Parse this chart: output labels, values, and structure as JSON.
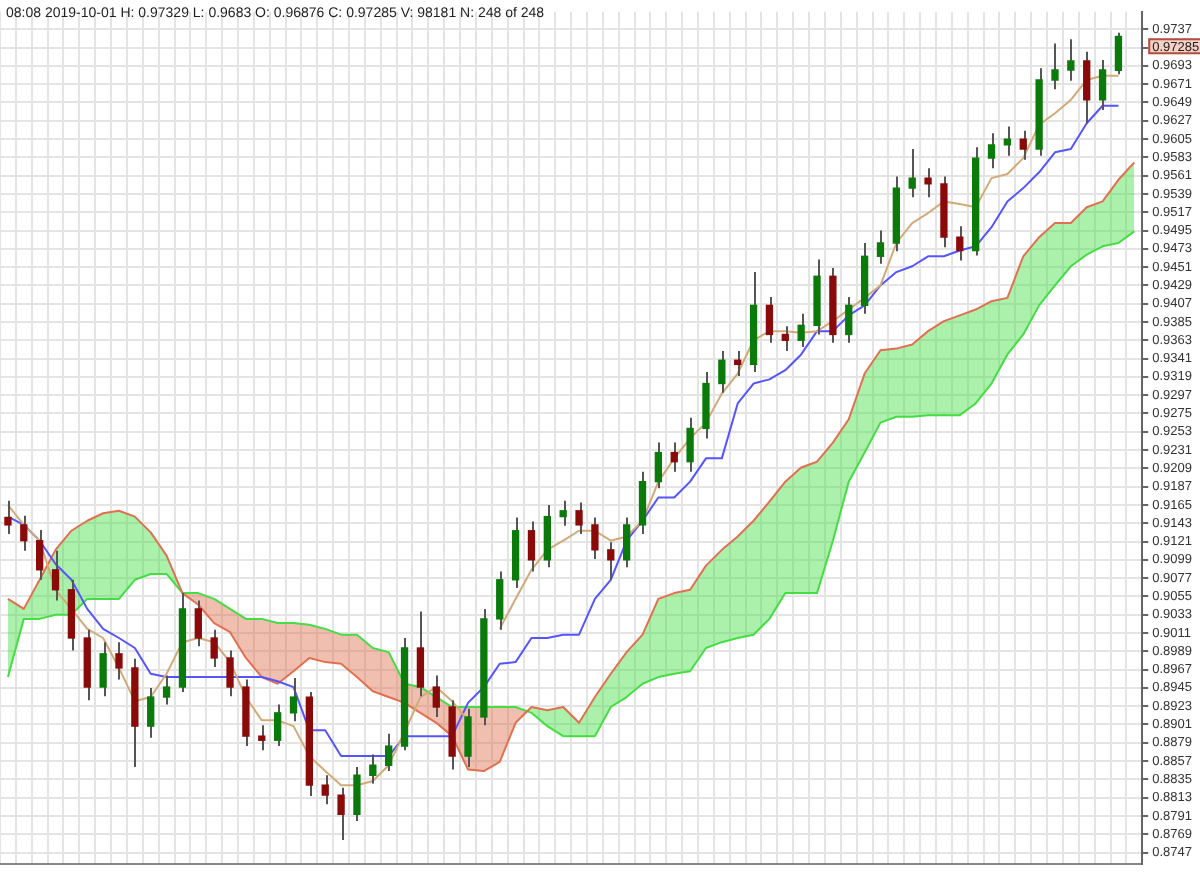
{
  "chart_data": {
    "type": "candlestick",
    "title": "08:08 2019-10-01 H: 0.97329 L: 0.9683 O: 0.96876 C: 0.97285 V: 98181 N: 248 of 248",
    "categories": [
      null,
      null,
      null,
      null,
      null,
      null,
      null,
      null,
      null,
      null,
      null,
      null,
      null,
      null,
      null,
      null,
      null,
      null,
      null,
      null,
      null,
      null,
      null,
      null,
      null,
      null,
      null,
      null,
      null,
      null,
      null,
      null,
      null,
      null,
      null,
      null,
      null,
      null,
      null,
      null,
      null,
      null,
      null,
      null,
      null,
      null,
      null,
      null,
      null,
      null,
      null,
      null,
      null,
      null,
      null,
      null,
      null,
      null,
      null,
      null,
      null,
      null,
      null,
      null,
      null,
      null,
      null,
      null,
      null,
      null,
      null,
      null
    ],
    "ohlc": [
      [
        0.915,
        0.917,
        0.913,
        0.9141
      ],
      [
        0.9141,
        0.9152,
        0.911,
        0.9122
      ],
      [
        0.9122,
        0.9135,
        0.9075,
        0.9087
      ],
      [
        0.9087,
        0.911,
        0.905,
        0.9063
      ],
      [
        0.9063,
        0.9075,
        0.899,
        0.9005
      ],
      [
        0.9005,
        0.9015,
        0.893,
        0.8946
      ],
      [
        0.8946,
        0.9,
        0.8935,
        0.8986
      ],
      [
        0.8986,
        0.9,
        0.8955,
        0.8969
      ],
      [
        0.8969,
        0.898,
        0.885,
        0.8899
      ],
      [
        0.8899,
        0.8945,
        0.8885,
        0.8934
      ],
      [
        0.8934,
        0.896,
        0.8925,
        0.8946
      ],
      [
        0.8946,
        0.9059,
        0.894,
        0.904
      ],
      [
        0.904,
        0.905,
        0.8995,
        0.9005
      ],
      [
        0.9005,
        0.9015,
        0.897,
        0.8981
      ],
      [
        0.8981,
        0.899,
        0.8935,
        0.8946
      ],
      [
        0.8946,
        0.8955,
        0.8875,
        0.8887
      ],
      [
        0.8887,
        0.89,
        0.887,
        0.8882
      ],
      [
        0.8882,
        0.8925,
        0.8875,
        0.8915
      ],
      [
        0.8915,
        0.8957,
        0.8905,
        0.8934
      ],
      [
        0.8934,
        0.894,
        0.8815,
        0.8828
      ],
      [
        0.8828,
        0.884,
        0.8805,
        0.8816
      ],
      [
        0.8816,
        0.8825,
        0.8762,
        0.8793
      ],
      [
        0.8793,
        0.885,
        0.8785,
        0.884
      ],
      [
        0.884,
        0.8865,
        0.883,
        0.8852
      ],
      [
        0.8852,
        0.889,
        0.8845,
        0.8875
      ],
      [
        0.8875,
        0.9005,
        0.887,
        0.8993
      ],
      [
        0.8993,
        0.9037,
        0.8935,
        0.8946
      ],
      [
        0.8946,
        0.896,
        0.891,
        0.8922
      ],
      [
        0.8922,
        0.893,
        0.8847,
        0.8863
      ],
      [
        0.8863,
        0.892,
        0.885,
        0.891
      ],
      [
        0.891,
        0.904,
        0.89,
        0.9028
      ],
      [
        0.9028,
        0.9085,
        0.9015,
        0.9075
      ],
      [
        0.9075,
        0.915,
        0.9065,
        0.9134
      ],
      [
        0.9134,
        0.9145,
        0.9085,
        0.9099
      ],
      [
        0.9099,
        0.9165,
        0.909,
        0.9151
      ],
      [
        0.9151,
        0.917,
        0.914,
        0.9158
      ],
      [
        0.9158,
        0.9168,
        0.913,
        0.9141
      ],
      [
        0.9141,
        0.915,
        0.91,
        0.9111
      ],
      [
        0.9111,
        0.912,
        0.9075,
        0.9099
      ],
      [
        0.9099,
        0.915,
        0.909,
        0.9141
      ],
      [
        0.9141,
        0.9205,
        0.913,
        0.9193
      ],
      [
        0.9193,
        0.924,
        0.9185,
        0.9228
      ],
      [
        0.9228,
        0.924,
        0.9205,
        0.9217
      ],
      [
        0.9217,
        0.927,
        0.9205,
        0.9257
      ],
      [
        0.9257,
        0.9325,
        0.9245,
        0.9311
      ],
      [
        0.9311,
        0.935,
        0.93,
        0.9339
      ],
      [
        0.9339,
        0.935,
        0.932,
        0.9334
      ],
      [
        0.9334,
        0.9445,
        0.9325,
        0.9405
      ],
      [
        0.9405,
        0.9415,
        0.936,
        0.937
      ],
      [
        0.937,
        0.938,
        0.935,
        0.9363
      ],
      [
        0.9363,
        0.9395,
        0.9355,
        0.9381
      ],
      [
        0.9381,
        0.946,
        0.937,
        0.944
      ],
      [
        0.944,
        0.945,
        0.936,
        0.937
      ],
      [
        0.937,
        0.9415,
        0.936,
        0.9405
      ],
      [
        0.9405,
        0.948,
        0.9395,
        0.9464
      ],
      [
        0.9464,
        0.9495,
        0.9455,
        0.948
      ],
      [
        0.948,
        0.956,
        0.947,
        0.9546
      ],
      [
        0.9546,
        0.9593,
        0.9535,
        0.9558
      ],
      [
        0.9558,
        0.957,
        0.9535,
        0.9551
      ],
      [
        0.9551,
        0.956,
        0.9475,
        0.9487
      ],
      [
        0.9487,
        0.95,
        0.9459,
        0.9471
      ],
      [
        0.9471,
        0.9595,
        0.9465,
        0.9582
      ],
      [
        0.9582,
        0.9612,
        0.957,
        0.9598
      ],
      [
        0.9598,
        0.962,
        0.9585,
        0.9605
      ],
      [
        0.9605,
        0.9615,
        0.958,
        0.9593
      ],
      [
        0.9593,
        0.969,
        0.9585,
        0.9676
      ],
      [
        0.9676,
        0.972,
        0.9665,
        0.9688
      ],
      [
        0.9688,
        0.9725,
        0.9675,
        0.9699
      ],
      [
        0.9699,
        0.971,
        0.9624,
        0.9652
      ],
      [
        0.9652,
        0.97,
        0.964,
        0.9688
      ],
      [
        0.96876,
        0.97329,
        0.9683,
        0.97285
      ],
      null
    ],
    "series": [
      {
        "type": "line",
        "color": "#d2aa78",
        "values": [
          0.9165,
          0.9141,
          0.9122,
          0.9063,
          0.904,
          0.9016,
          0.9005,
          0.8969,
          0.8929,
          0.8934,
          0.8962,
          0.9,
          0.9005,
          0.9,
          0.8976,
          0.8934,
          0.8906,
          0.8906,
          0.8899,
          0.8863,
          0.8845,
          0.8828,
          0.8828,
          0.8833,
          0.8852,
          0.8892,
          0.8934,
          0.8946,
          0.8929,
          0.8906,
          null,
          0.9016,
          0.9052,
          0.9087,
          0.9111,
          0.9122,
          0.9134,
          0.9134,
          0.9122,
          0.9127,
          0.9146,
          0.9193,
          0.9221,
          0.9245,
          0.9264,
          0.9299,
          0.9323,
          0.9363,
          0.9374,
          0.9374,
          0.9372,
          0.9374,
          0.9386,
          0.94,
          0.9414,
          0.9429,
          0.948,
          0.9504,
          0.9516,
          0.953,
          0.9527,
          0.9523,
          0.9558,
          0.9563,
          0.9582,
          0.9622,
          0.9636,
          0.9652,
          0.9676,
          0.9681,
          0.9681,
          null
        ]
      },
      {
        "type": "line",
        "color": "#5555ff",
        "values": [
          0.9151,
          0.9141,
          0.9122,
          0.9094,
          0.9075,
          0.904,
          0.9016,
          0.9005,
          0.8993,
          0.8962,
          0.8958,
          0.8958,
          0.8958,
          0.8958,
          0.8958,
          0.8958,
          0.8958,
          0.8953,
          0.8946,
          0.8894,
          0.8894,
          0.8863,
          0.8863,
          0.8863,
          0.8863,
          0.8887,
          0.8887,
          0.8887,
          0.8887,
          0.8927,
          0.8946,
          0.8974,
          0.8976,
          0.9005,
          0.9005,
          0.9009,
          0.9009,
          0.9052,
          0.9075,
          0.9122,
          0.9146,
          0.9174,
          0.9174,
          0.9193,
          0.9221,
          0.9221,
          0.9287,
          0.9311,
          0.9316,
          0.9327,
          0.9346,
          0.9374,
          0.9374,
          0.9393,
          0.9405,
          0.9429,
          0.9445,
          0.9452,
          0.9464,
          0.9464,
          0.9471,
          0.9476,
          0.9499,
          0.953,
          0.9546,
          0.9565,
          0.9589,
          0.9593,
          0.9624,
          0.9645,
          0.9645,
          null
        ]
      },
      {
        "type": "line",
        "color": "#e07050",
        "values": [
          0.9052,
          0.904,
          0.9075,
          0.9111,
          0.9134,
          0.9146,
          0.9155,
          0.9158,
          0.9151,
          0.9132,
          0.9104,
          0.9059,
          0.9045,
          0.9023,
          0.9012,
          0.8981,
          0.8958,
          0.895,
          0.8965,
          0.8981,
          0.8976,
          0.8974,
          0.8958,
          0.8941,
          0.8934,
          0.8927,
          0.8915,
          0.8903,
          0.8887,
          0.8847,
          0.8845,
          0.8856,
          0.8903,
          0.8922,
          0.8918,
          0.8922,
          0.8903,
          0.8934,
          0.8962,
          0.8988,
          0.9009,
          0.9052,
          0.9059,
          0.9063,
          0.9092,
          0.9111,
          0.9127,
          0.9146,
          0.9169,
          0.9193,
          0.921,
          0.9217,
          0.924,
          0.9268,
          0.9323,
          0.9351,
          0.9353,
          0.9358,
          0.9374,
          0.9386,
          0.9393,
          0.94,
          0.941,
          0.9414,
          0.9464,
          0.9487,
          0.9504,
          0.9504,
          0.9523,
          0.953,
          0.9556,
          0.9577
        ],
        "upper": [
          0.9052,
          0.904,
          0.9075,
          0.9111,
          0.9134,
          0.9146,
          0.9155,
          0.9158,
          0.9151,
          0.9132,
          0.9104,
          0.9059,
          0.9045,
          0.9023,
          0.9012,
          0.8981,
          0.8958,
          0.895,
          0.8965,
          0.8981,
          0.8976,
          0.8974,
          0.8958,
          0.8941,
          0.8934,
          0.8927,
          0.8915,
          0.8903,
          0.8887,
          0.8847,
          0.8845,
          0.8856,
          0.8903,
          0.8922,
          0.8918,
          0.8922,
          0.8903,
          0.8934,
          0.8962,
          0.8988,
          0.9009,
          0.9052,
          0.9059,
          0.9063,
          0.9092,
          0.9111,
          0.9127,
          0.9146,
          0.9169,
          0.9193,
          0.921,
          0.9217,
          0.924,
          0.9268,
          0.9323,
          0.9351,
          0.9353,
          0.9358,
          0.9374,
          0.9386,
          0.9393,
          0.94,
          0.941,
          0.9414,
          0.9464,
          0.9487,
          0.9504,
          0.9504,
          0.9523,
          0.953,
          0.9556,
          0.9577
        ],
        "lower": [
          0.8958,
          0.9028,
          0.9028,
          0.9033,
          0.9033,
          0.9052,
          0.9052,
          0.9052,
          0.9075,
          0.9082,
          0.9082,
          0.9059,
          0.9059,
          0.9052,
          0.904,
          0.9028,
          0.9028,
          0.9023,
          0.9023,
          0.9021,
          0.9016,
          0.9009,
          0.9009,
          0.8993,
          0.8988,
          0.895,
          0.8946,
          0.8934,
          0.8922,
          0.8922,
          0.8922,
          0.8922,
          0.8922,
          0.8915,
          0.8899,
          0.8887,
          0.8887,
          0.8887,
          0.8922,
          0.8934,
          0.895,
          0.8958,
          0.8962,
          0.8965,
          0.8993,
          0.9,
          0.9005,
          0.9009,
          0.9028,
          0.9059,
          0.9059,
          0.9059,
          0.9122,
          0.9193,
          0.9228,
          0.9264,
          0.9271,
          0.9271,
          0.9273,
          0.9273,
          0.9273,
          0.9287,
          0.9311,
          0.9346,
          0.937,
          0.9405,
          0.9429,
          0.9452,
          0.9466,
          0.9476,
          0.948,
          0.9494
        ]
      },
      {
        "type": "line",
        "color": "#44dd44",
        "values": [
          0.8958,
          0.9028,
          0.9028,
          0.9033,
          0.9033,
          0.9052,
          0.9052,
          0.9052,
          0.9075,
          0.9082,
          0.9082,
          0.9059,
          0.9059,
          0.9052,
          0.904,
          0.9028,
          0.9028,
          0.9023,
          0.9023,
          0.9021,
          0.9016,
          0.9009,
          0.9009,
          0.8993,
          0.8988,
          0.895,
          0.8946,
          0.8934,
          0.8922,
          0.8922,
          0.8922,
          0.8922,
          0.8922,
          0.8915,
          0.8899,
          0.8887,
          0.8887,
          0.8887,
          0.8922,
          0.8934,
          0.895,
          0.8958,
          0.8962,
          0.8965,
          0.8993,
          0.9,
          0.9005,
          0.9009,
          0.9028,
          0.9059,
          0.9059,
          0.9059,
          0.9122,
          0.9193,
          0.9228,
          0.9264,
          0.9271,
          0.9271,
          0.9273,
          0.9273,
          0.9273,
          0.9287,
          0.9311,
          0.9346,
          0.937,
          0.9405,
          0.9429,
          0.9452,
          0.9466,
          0.9476,
          0.948,
          0.9494
        ]
      }
    ],
    "ylim": [
      0.8733,
      0.9758
    ],
    "yticks": [
      0.8747,
      0.8769,
      0.8791,
      0.8813,
      0.8835,
      0.8857,
      0.8879,
      0.8901,
      0.8923,
      0.8945,
      0.8967,
      0.8989,
      0.9011,
      0.9033,
      0.9055,
      0.9077,
      0.9099,
      0.9121,
      0.9143,
      0.9165,
      0.9187,
      0.9209,
      0.9231,
      0.9253,
      0.9275,
      0.9297,
      0.9319,
      0.9341,
      0.9363,
      0.9385,
      0.9407,
      0.9429,
      0.9451,
      0.9473,
      0.9495,
      0.9517,
      0.9539,
      0.9561,
      0.9583,
      0.9605,
      0.9627,
      0.9649,
      0.9671,
      0.9693,
      {
        "value": 0.9715,
        "label": null
      },
      0.9737
    ],
    "annotations": [
      "0.97285"
    ],
    "grid": true,
    "tick_labels": "y"
  }
}
